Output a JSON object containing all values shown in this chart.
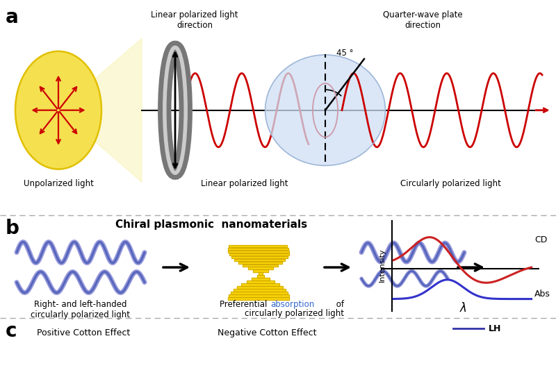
{
  "panel_a_label": "a",
  "panel_b_label": "b",
  "panel_c_label": "c",
  "panel_b_title": "Chiral plasmonic  nanomaterials",
  "unpolarized_label": "Unpolarized light",
  "linear_pol_label": "Linear polarized light",
  "circular_pol_label": "Circularly polarized light",
  "linear_dir_label": "Linear polarized light\ndirection",
  "quarter_wave_label": "Quarter-wave plate\ndirection",
  "angle_label": "45 °",
  "right_left_label": "Right- and left-handed\ncircularly polarized light",
  "cd_label": "CD",
  "abs_label": "Abs",
  "intensity_label": "Intensity",
  "lambda_label": "λ",
  "lh_label": "LH",
  "positive_cotton_label": "Positive Cotton Effect",
  "negative_cotton_label": "Negative Cotton Effect",
  "bg_color": "#ffffff",
  "wave_color_red": "#cc0000",
  "wave_color_blue_light": "#9999dd",
  "wave_color_blue_dark": "#5566bb",
  "yellow_fill": "#f5d000",
  "yellow_edge": "#c8a000",
  "cd_curve_color": "#cc2222",
  "abs_curve_color": "#3333cc",
  "sep_color": "#aaaaaa",
  "absorption_blue": "#3366cc",
  "lh_line_color": "#3333aa"
}
